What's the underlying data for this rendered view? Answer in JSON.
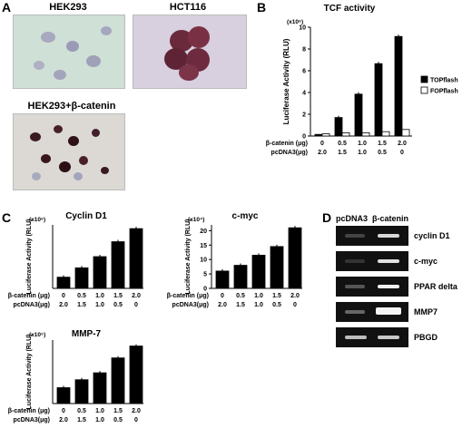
{
  "panels": {
    "A": {
      "label": "A",
      "images": [
        {
          "title": "HEK293"
        },
        {
          "title": "HCT116"
        },
        {
          "title": "HEK293+β-catenin"
        }
      ]
    },
    "B": {
      "label": "B"
    },
    "C": {
      "label": "C"
    },
    "D": {
      "label": "D",
      "header": "pcDNA3  β-catenin",
      "genes": [
        "cyclin D1",
        "c-myc",
        "PPAR delta",
        "MMP7",
        "PBGD"
      ]
    }
  },
  "row_labels": {
    "bcat": "β-catenin (μg)",
    "pcdna": "pcDNA3(μg)"
  },
  "chart_data": [
    {
      "id": "tcf",
      "type": "bar",
      "title": "TCF activity",
      "ylabel": "Luciferase Activity (RLU)",
      "yscale_label": "(x10⁶)",
      "ylim": [
        0,
        10
      ],
      "yticks": [
        0,
        2,
        4,
        6,
        8,
        10
      ],
      "categories": [
        "0",
        "0.5",
        "1.0",
        "1.5",
        "2.0"
      ],
      "categories_pcdna": [
        "2.0",
        "1.5",
        "1.0",
        "0.5",
        "0"
      ],
      "series": [
        {
          "name": "TOPflash",
          "values": [
            0.15,
            1.7,
            3.85,
            6.65,
            9.15
          ],
          "color": "#000000"
        },
        {
          "name": "FOPflash",
          "values": [
            0.2,
            0.3,
            0.3,
            0.4,
            0.6
          ],
          "color": "#ffffff"
        }
      ],
      "legend": "right"
    },
    {
      "id": "cyclin",
      "type": "bar",
      "title": "Cyclin D1",
      "ylabel": "Luciferase Activity (RLU)",
      "yscale_label": "(x10⁶)",
      "categories": [
        "0",
        "0.5",
        "1.0",
        "1.5",
        "2.0"
      ],
      "categories_pcdna": [
        "2.0",
        "1.5",
        "1.0",
        "0.5",
        "0"
      ],
      "values": [
        3.0,
        5.5,
        8.5,
        12.5,
        16.0
      ],
      "ylim": [
        0,
        17
      ]
    },
    {
      "id": "cmyc",
      "type": "bar",
      "title": "c-myc",
      "ylabel": "Luciferase Activity (RLU)",
      "yscale_label": "(x10⁴)",
      "ylim": [
        0,
        22
      ],
      "yticks": [
        0,
        5,
        10,
        15,
        20
      ],
      "categories": [
        "0",
        "0.5",
        "1.0",
        "1.5",
        "2.0"
      ],
      "categories_pcdna": [
        "2.0",
        "1.5",
        "1.0",
        "0.5",
        "0"
      ],
      "values": [
        6,
        8,
        11.5,
        14.5,
        21
      ]
    },
    {
      "id": "mmp7",
      "type": "bar",
      "title": "MMP-7",
      "ylabel": "Luciferase Activity (RLU)",
      "yscale_label": "(x10⁵)",
      "categories": [
        "0",
        "0.5",
        "1.0",
        "1.5",
        "2.0"
      ],
      "categories_pcdna": [
        "2.0",
        "1.5",
        "1.0",
        "0.5",
        "0"
      ],
      "values": [
        8,
        12,
        15.5,
        23,
        29
      ],
      "ylim": [
        0,
        32
      ]
    }
  ]
}
